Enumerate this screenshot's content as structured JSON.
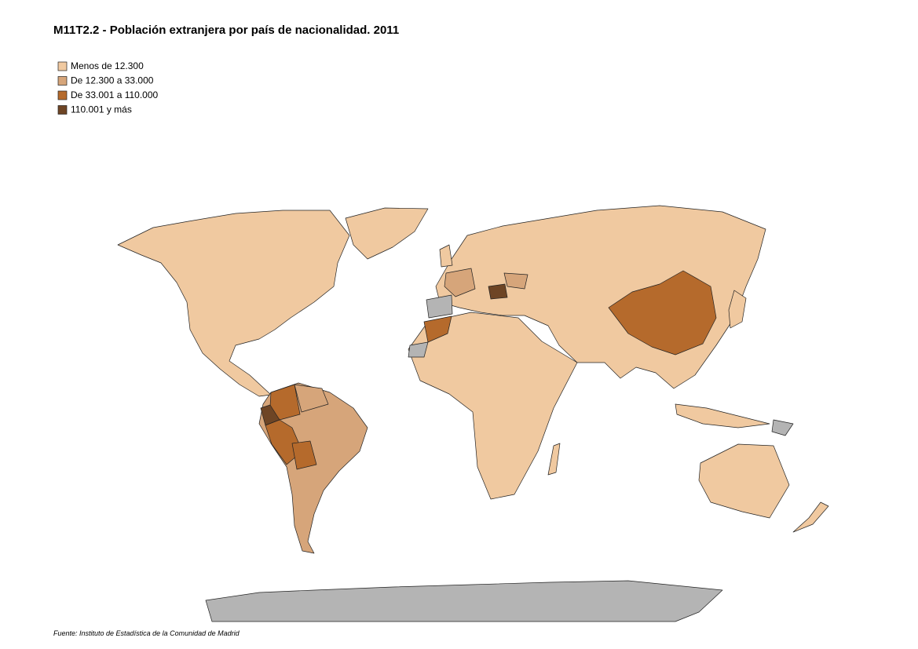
{
  "title": "M11T2.2 - Población extranjera por país de nacionalidad. 2011",
  "legend": {
    "items": [
      {
        "label": "Menos de 12.300",
        "color": "#f0c9a0"
      },
      {
        "label": "De 12.300 a 33.000",
        "color": "#d6a57a"
      },
      {
        "label": "De 33.001 a 110.000",
        "color": "#b56a2c"
      },
      {
        "label": "110.001 y más",
        "color": "#6e4525"
      }
    ]
  },
  "source": "Fuente: Instituto de Estadística de la Comunidad de Madrid"
}
